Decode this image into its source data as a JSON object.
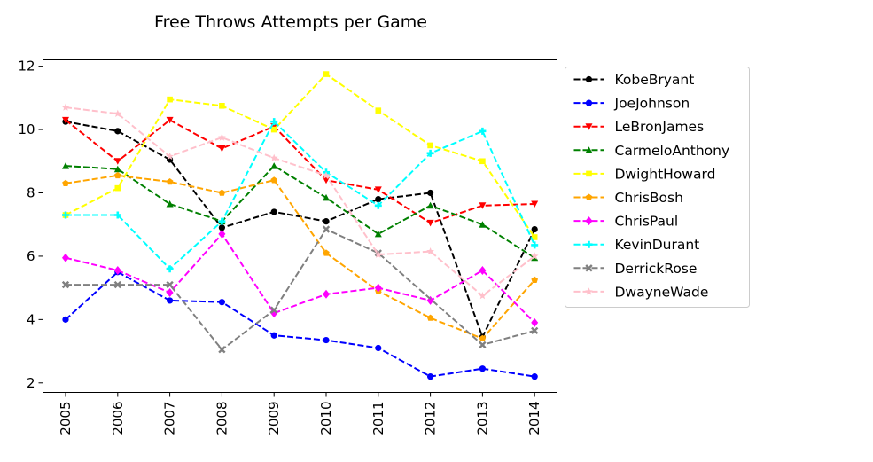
{
  "chart_data": {
    "type": "line",
    "title": "Free Throws Attempts per Game",
    "xlabel": "",
    "ylabel": "",
    "x": [
      "2005",
      "2006",
      "2007",
      "2008",
      "2009",
      "2010",
      "2011",
      "2012",
      "2013",
      "2014"
    ],
    "ylim": [
      1.7,
      12.2
    ],
    "yticks": [
      "2",
      "4",
      "6",
      "8",
      "10",
      "12"
    ],
    "grid": false,
    "legend_position": "outside-right",
    "series": [
      {
        "name": "KobeBryant",
        "color": "#000000",
        "marker": "circle",
        "values": [
          10.25,
          9.95,
          9.05,
          6.9,
          7.4,
          7.1,
          7.8,
          8.0,
          3.45,
          6.85
        ]
      },
      {
        "name": "JoeJohnson",
        "color": "#0000ff",
        "marker": "circle",
        "values": [
          4.0,
          5.5,
          4.6,
          4.55,
          3.5,
          3.35,
          3.1,
          2.2,
          2.45,
          2.2
        ]
      },
      {
        "name": "LeBronJames",
        "color": "#ff0000",
        "marker": "triangle-down",
        "values": [
          10.3,
          9.0,
          10.3,
          9.4,
          10.1,
          8.4,
          8.1,
          7.05,
          7.6,
          7.65
        ]
      },
      {
        "name": "CarmeloAnthony",
        "color": "#008000",
        "marker": "triangle-up",
        "values": [
          8.85,
          8.75,
          7.65,
          7.1,
          8.85,
          7.85,
          6.7,
          7.6,
          7.0,
          5.95
        ]
      },
      {
        "name": "DwightHoward",
        "color": "#ffff00",
        "marker": "square",
        "values": [
          7.3,
          8.15,
          10.95,
          10.75,
          10.0,
          11.75,
          10.6,
          9.5,
          9.0,
          6.6
        ]
      },
      {
        "name": "ChrisBosh",
        "color": "#ffa500",
        "marker": "pentagon",
        "values": [
          8.3,
          8.55,
          8.35,
          8.0,
          8.4,
          6.1,
          4.9,
          4.05,
          3.4,
          5.25
        ]
      },
      {
        "name": "ChrisPaul",
        "color": "#ff00ff",
        "marker": "diamond",
        "values": [
          5.95,
          5.55,
          4.85,
          6.7,
          4.2,
          4.8,
          5.0,
          4.6,
          5.55,
          3.9
        ]
      },
      {
        "name": "KevinDurant",
        "color": "#00ffff",
        "marker": "plus",
        "values": [
          7.3,
          7.3,
          5.6,
          7.1,
          10.25,
          8.65,
          7.6,
          9.25,
          9.95,
          6.35
        ]
      },
      {
        "name": "DerrickRose",
        "color": "#808080",
        "marker": "x",
        "values": [
          5.1,
          5.1,
          5.1,
          3.05,
          4.3,
          6.85,
          6.1,
          null,
          3.2,
          3.65
        ]
      },
      {
        "name": "DwayneWade",
        "color": "#ffc0cb",
        "marker": "star",
        "values": [
          10.7,
          10.5,
          9.15,
          9.75,
          9.1,
          8.55,
          6.05,
          6.15,
          4.75,
          6.0
        ]
      }
    ]
  }
}
